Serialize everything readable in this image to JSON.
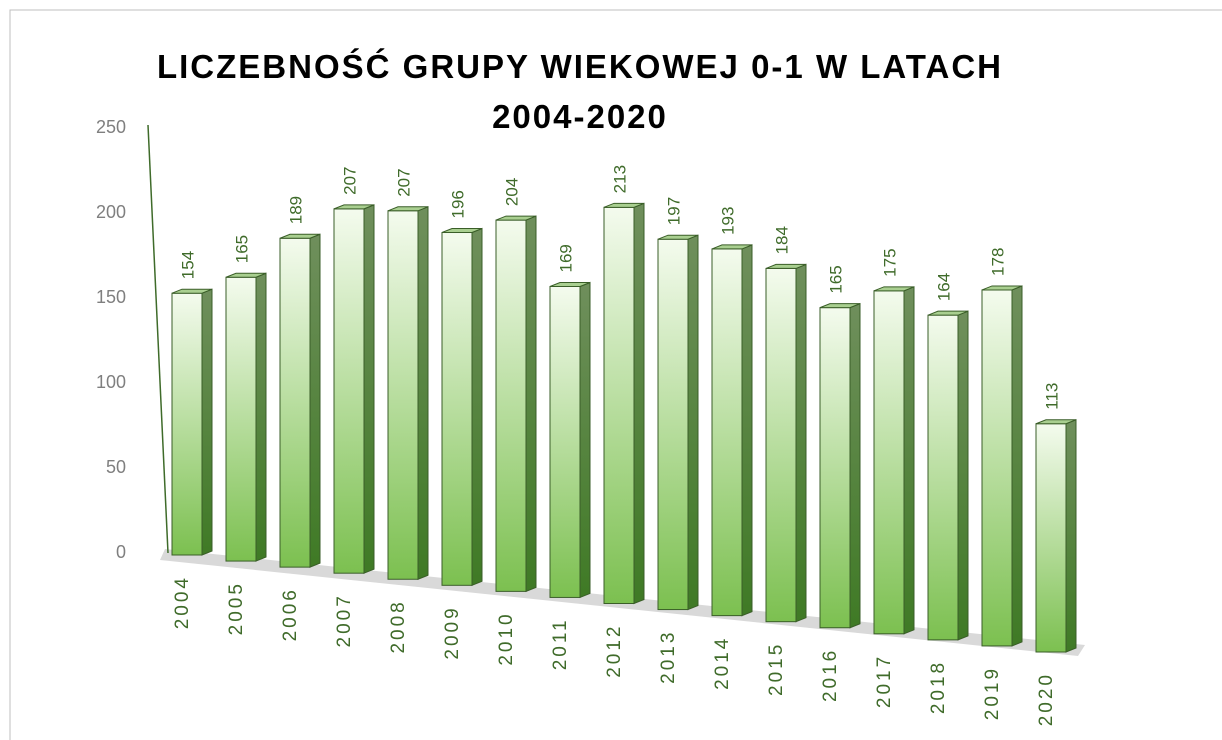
{
  "chart_data": {
    "type": "bar3d",
    "title": "LICZEBNOŚĆ GRUPY WIEKOWEJ 0-1 W LATACH 2004-2020",
    "categories": [
      "2004",
      "2005",
      "2006",
      "2007",
      "2008",
      "2009",
      "2010",
      "2011",
      "2012",
      "2013",
      "2014",
      "2015",
      "2016",
      "2017",
      "2018",
      "2019",
      "2020"
    ],
    "values": [
      154,
      165,
      189,
      207,
      207,
      196,
      204,
      169,
      213,
      197,
      193,
      184,
      165,
      175,
      164,
      178,
      113
    ],
    "color": "#7cc050",
    "ylim": [
      0,
      250
    ],
    "yticks": [
      0,
      50,
      100,
      150,
      200,
      250
    ],
    "grid": false
  }
}
